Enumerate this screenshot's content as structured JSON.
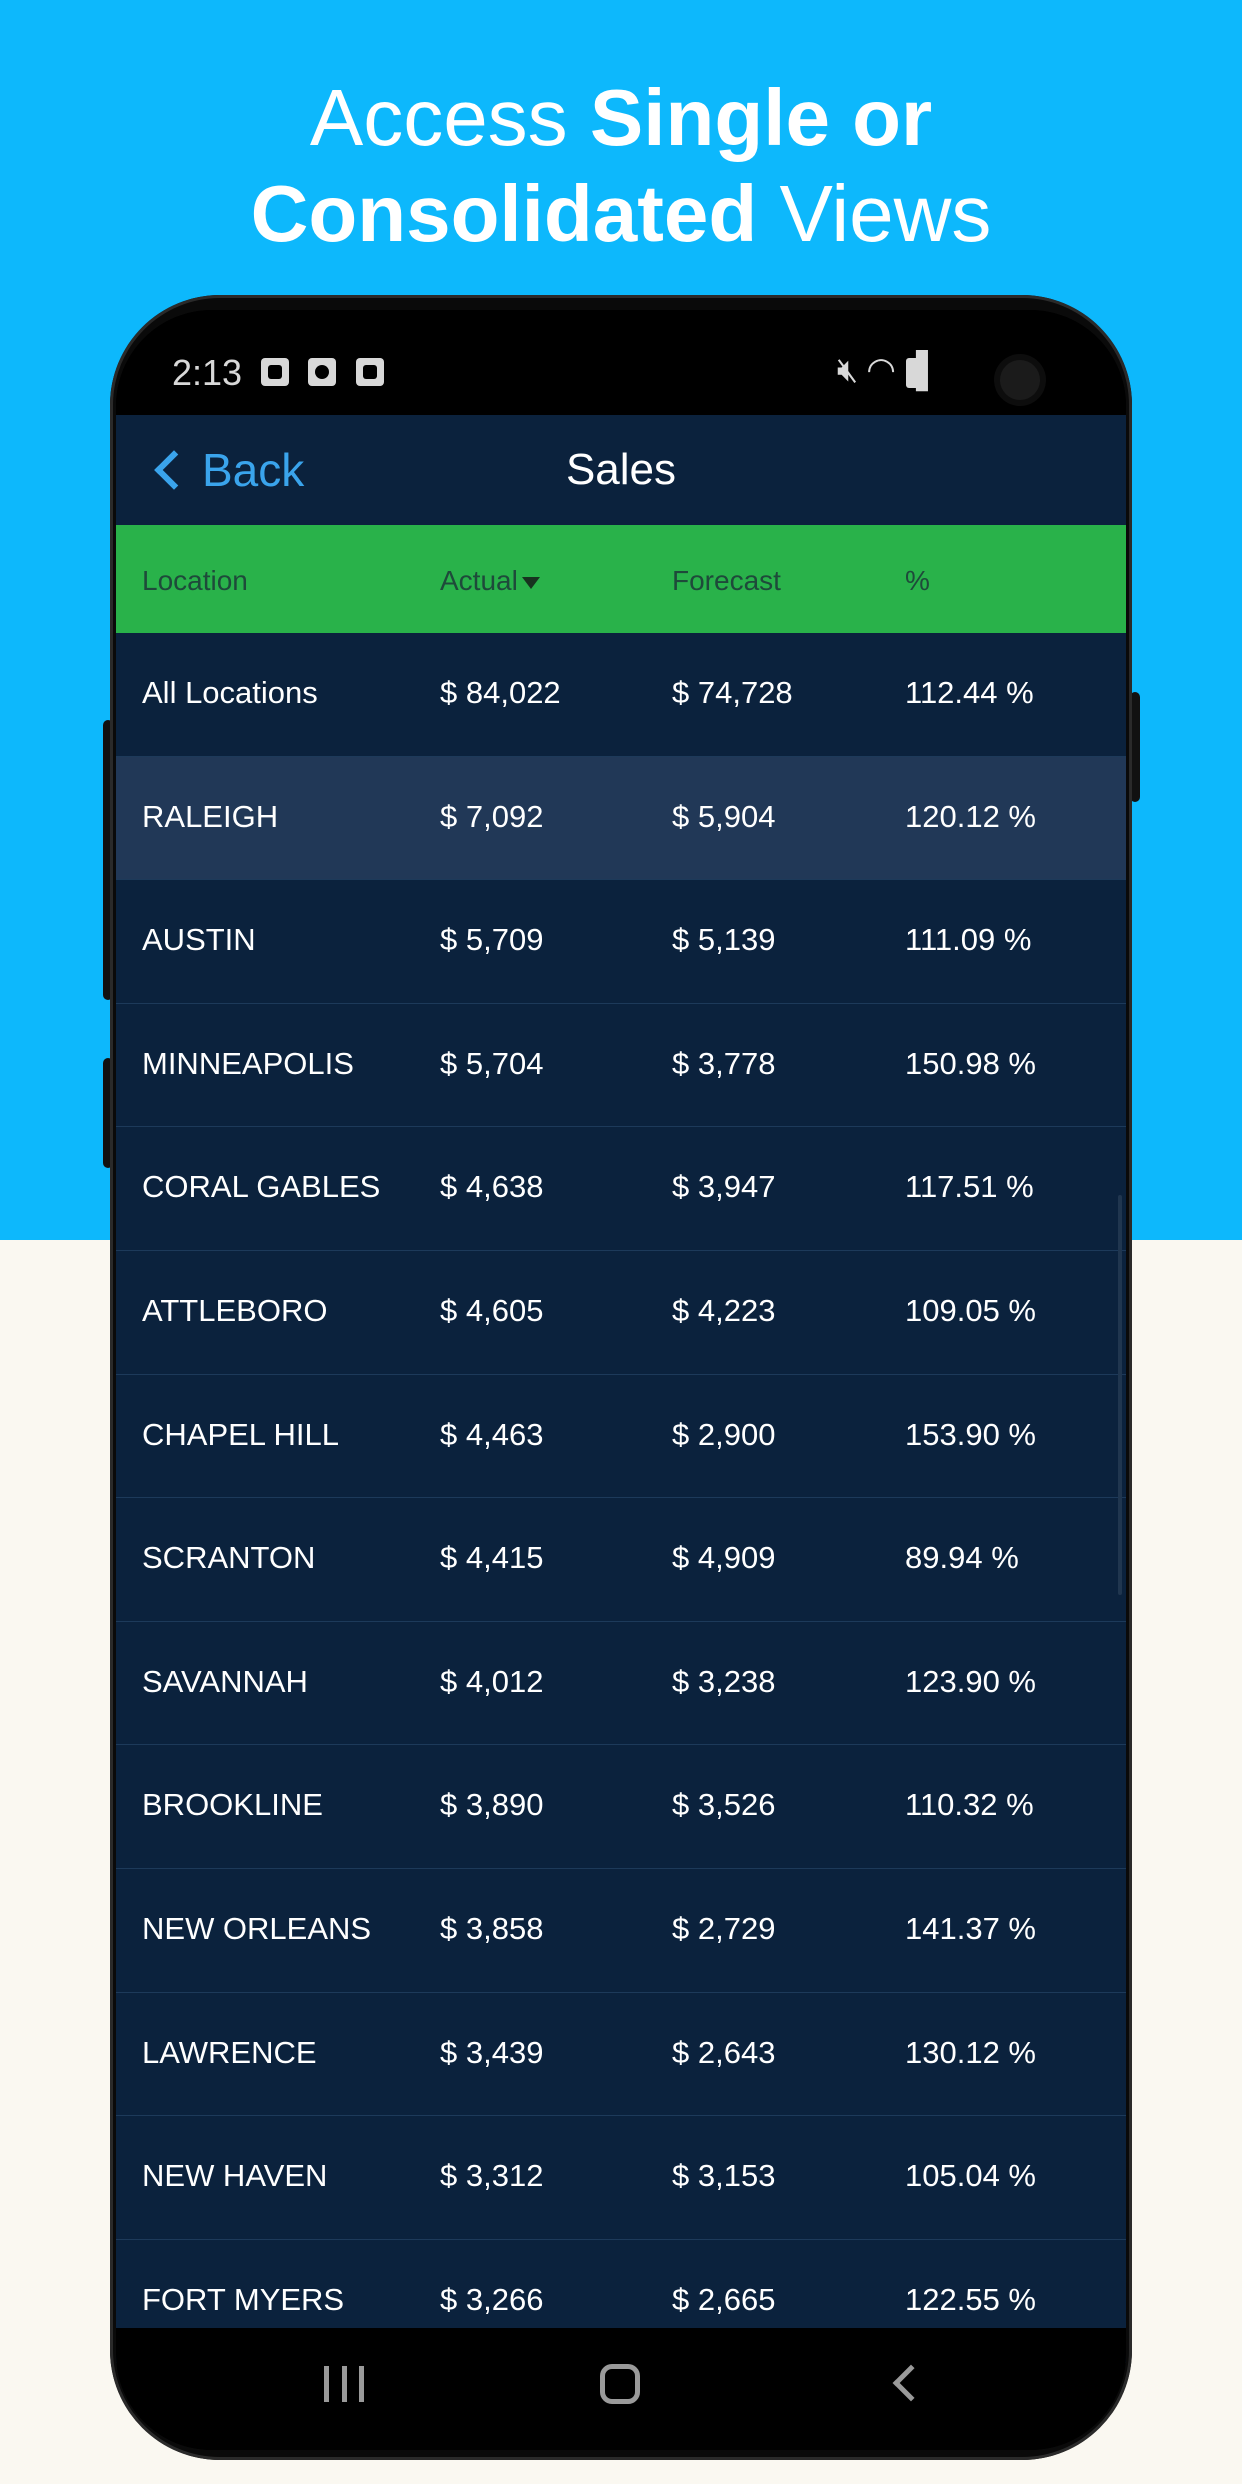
{
  "headline": {
    "line1_normal": "Access ",
    "line1_bold": "Single or",
    "line2_bold": "Consolidated",
    "line2_normal": " Views"
  },
  "status_bar": {
    "time": "2:13",
    "icons": [
      "image-icon",
      "record-icon",
      "close-box-icon",
      "mute-icon",
      "wifi-icon",
      "signal-icon",
      "battery-icon"
    ]
  },
  "nav": {
    "back_label": "Back",
    "title": "Sales"
  },
  "table": {
    "columns": [
      "Location",
      "Actual",
      "Forecast",
      "%"
    ],
    "sort_column": "Actual",
    "rows": [
      [
        "All Locations",
        "$ 84,022",
        "$ 74,728",
        "112.44 %"
      ],
      [
        "RALEIGH",
        "$ 7,092",
        "$ 5,904",
        "120.12 %"
      ],
      [
        "AUSTIN",
        "$ 5,709",
        "$ 5,139",
        "111.09 %"
      ],
      [
        "MINNEAPOLIS",
        "$ 5,704",
        "$ 3,778",
        "150.98 %"
      ],
      [
        "CORAL GABLES",
        "$ 4,638",
        "$ 3,947",
        "117.51 %"
      ],
      [
        "ATTLEBORO",
        "$ 4,605",
        "$ 4,223",
        "109.05 %"
      ],
      [
        "CHAPEL HILL",
        "$ 4,463",
        "$ 2,900",
        "153.90 %"
      ],
      [
        "SCRANTON",
        "$ 4,415",
        "$ 4,909",
        "89.94 %"
      ],
      [
        "SAVANNAH",
        "$ 4,012",
        "$ 3,238",
        "123.90 %"
      ],
      [
        "BROOKLINE",
        "$ 3,890",
        "$ 3,526",
        "110.32 %"
      ],
      [
        "NEW ORLEANS",
        "$ 3,858",
        "$ 2,729",
        "141.37 %"
      ],
      [
        "LAWRENCE",
        "$ 3,439",
        "$ 2,643",
        "130.12 %"
      ],
      [
        "NEW HAVEN",
        "$ 3,312",
        "$ 3,153",
        "105.04 %"
      ],
      [
        "FORT MYERS",
        "$ 3,266",
        "$ 2,665",
        "122.55 %"
      ]
    ]
  },
  "colors": {
    "top_background": "#0db8fc",
    "bottom_background": "#faf8f1",
    "navbar": "#0b223d",
    "header_green": "#29b24a",
    "selected_row": "#213857",
    "back_blue": "#3aa4ec"
  }
}
